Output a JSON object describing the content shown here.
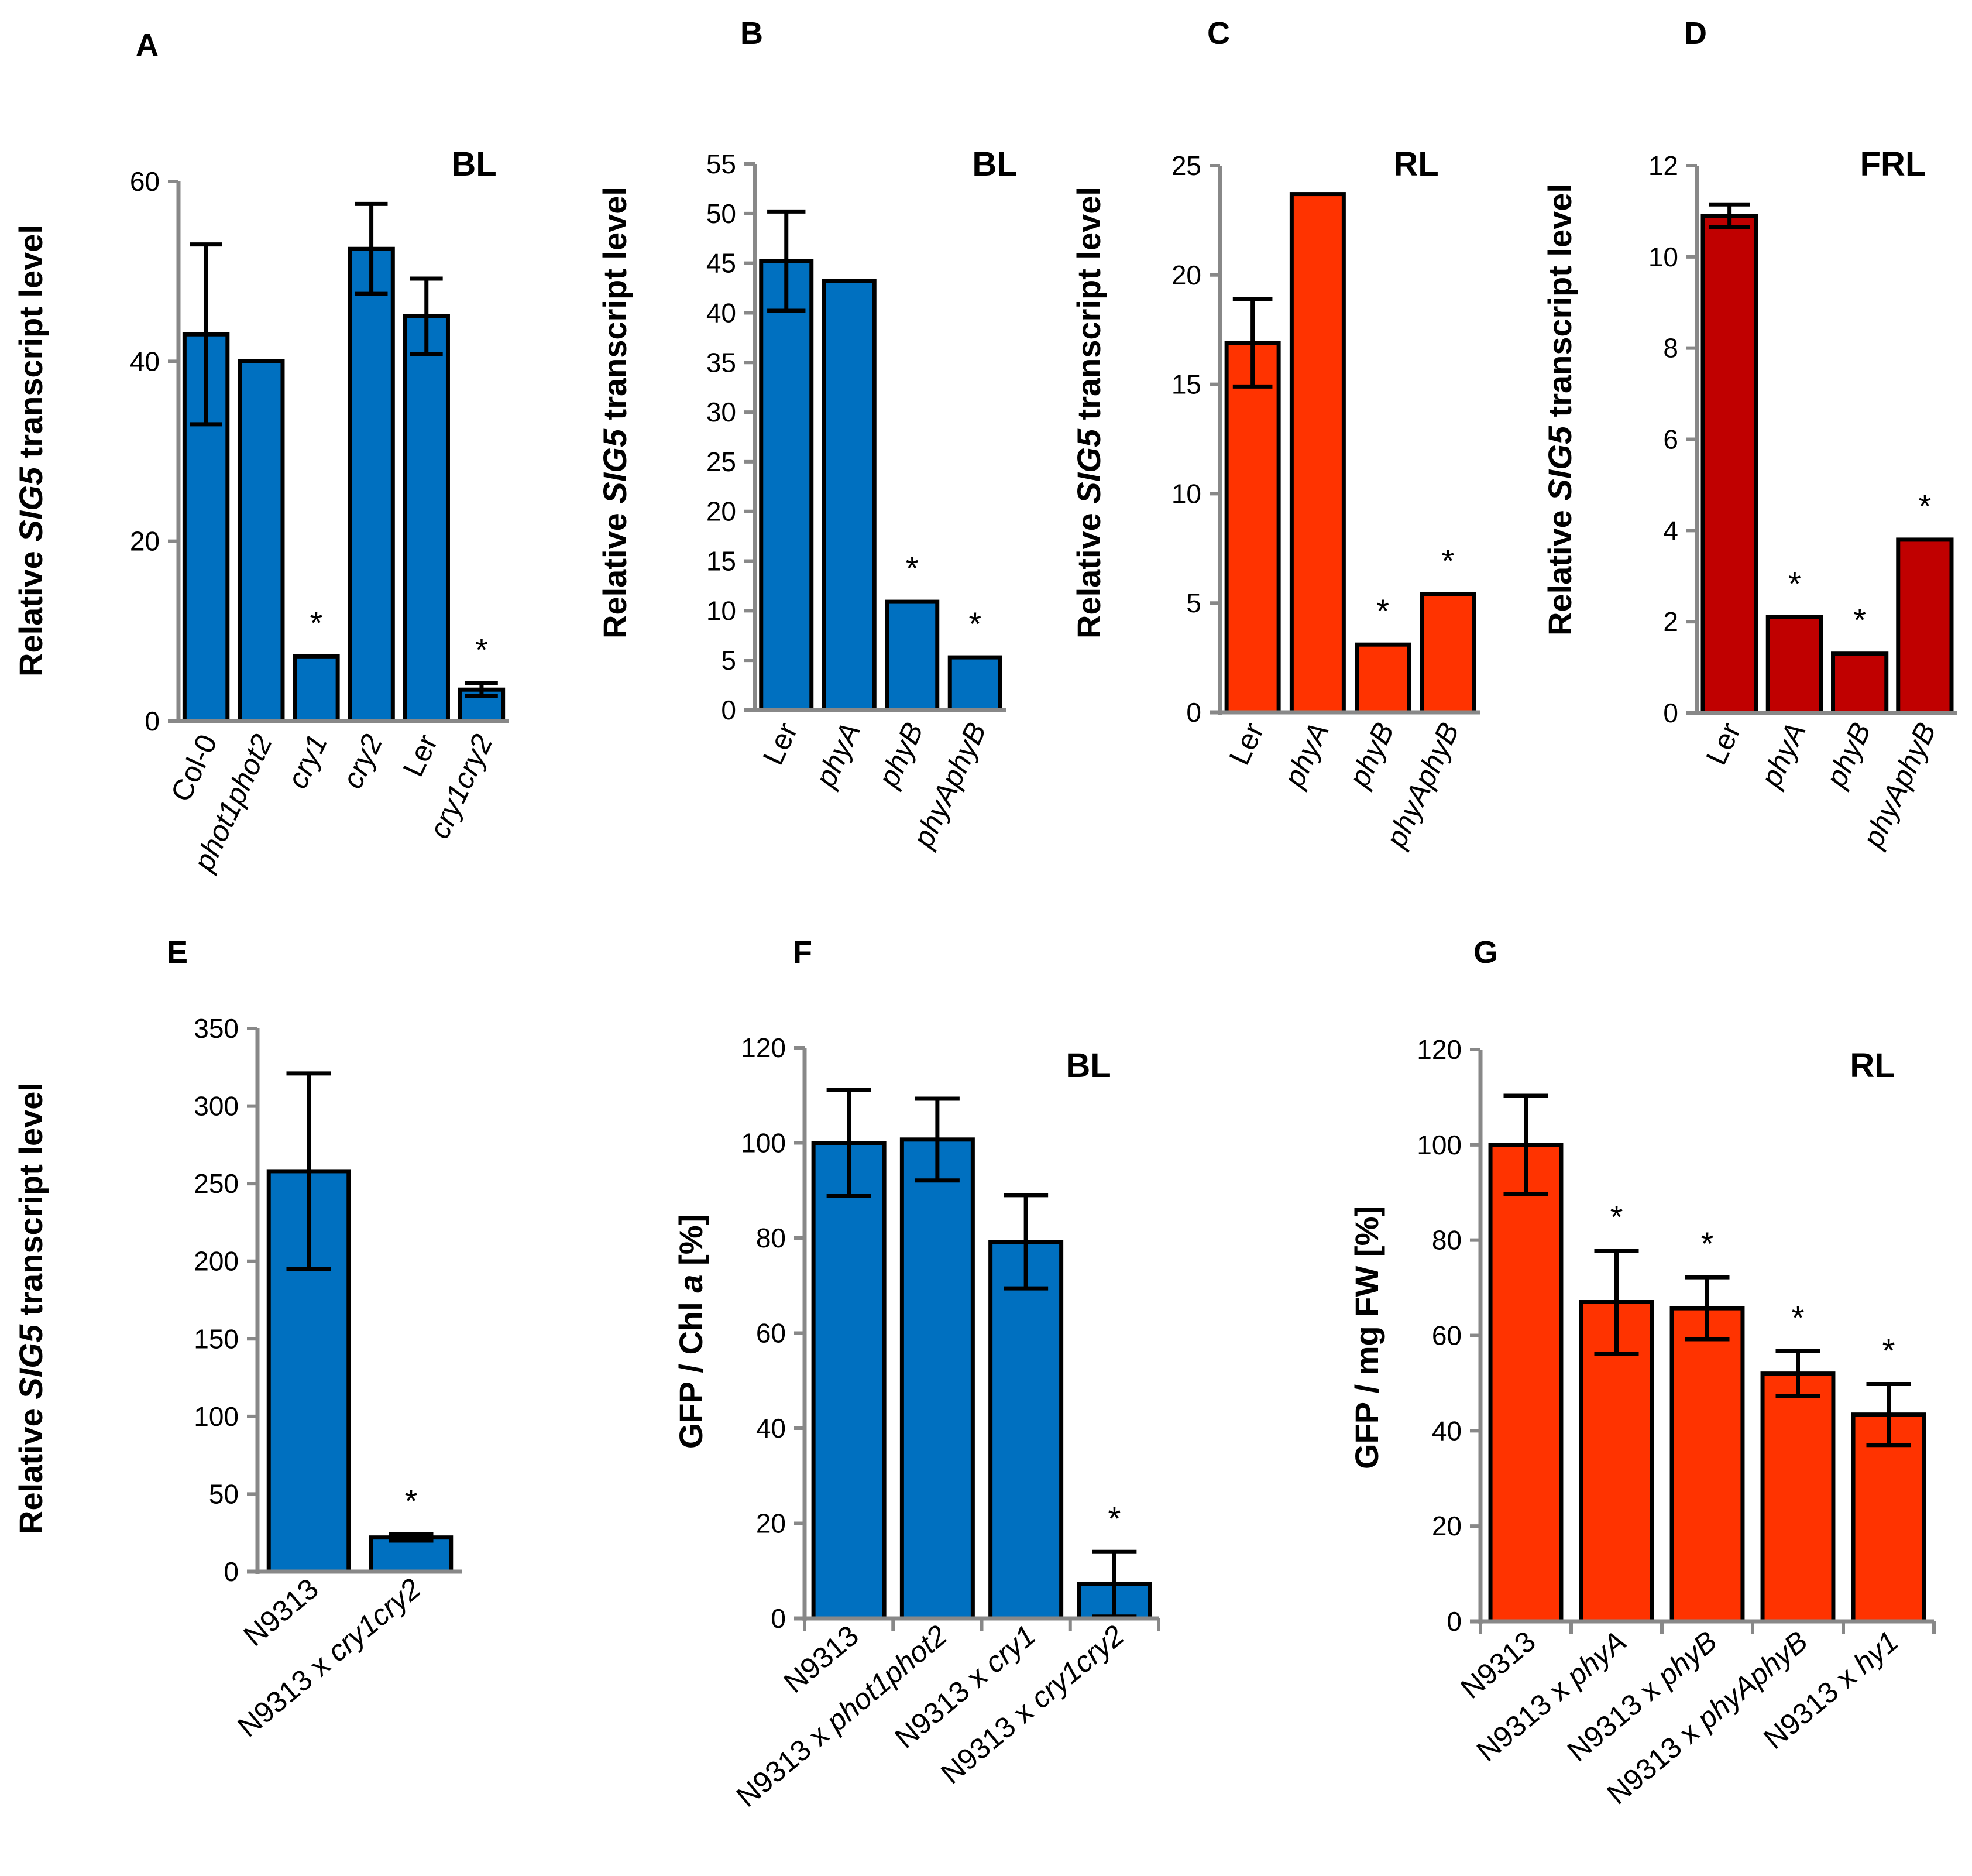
{
  "figure": {
    "colors": {
      "blue": "#0070C0",
      "orange_red": "#FF3300",
      "dark_red": "#C00000",
      "axis": "#888888",
      "outline": "#000000"
    }
  },
  "chart_data": [
    {
      "id": "A",
      "type": "bar",
      "panel_letter": "A",
      "condition": "BL",
      "ylabel_parts": [
        "Relative ",
        "SIG5",
        " transcript  level"
      ],
      "ylim": [
        0,
        60
      ],
      "yticks": [
        0,
        20,
        40,
        60
      ],
      "color": "blue",
      "italic_categories": [
        false,
        true,
        true,
        true,
        false,
        true
      ],
      "categories": [
        "Col-0",
        "phot1phot2",
        "cry1",
        "cry2",
        "Ler",
        "cry1cry2"
      ],
      "values": [
        43.0,
        40.0,
        7.2,
        52.5,
        45.0,
        3.5
      ],
      "errors": [
        10.0,
        null,
        null,
        5.0,
        4.2,
        0.7
      ],
      "significant": [
        false,
        false,
        true,
        false,
        false,
        true
      ],
      "tick_marks_between": false
    },
    {
      "id": "B",
      "type": "bar",
      "panel_letter": "B",
      "condition": "BL",
      "ylabel_parts": [
        "Relative ",
        "SIG5",
        " transcript level"
      ],
      "ylim": [
        0,
        55
      ],
      "yticks": [
        0,
        5,
        10,
        15,
        20,
        25,
        30,
        35,
        40,
        45,
        50,
        55
      ],
      "color": "blue",
      "italic_categories": [
        false,
        true,
        true,
        true
      ],
      "categories": [
        "Ler",
        "phyA",
        "phyB",
        "phyAphyB"
      ],
      "values": [
        45.2,
        43.2,
        10.9,
        5.3
      ],
      "errors": [
        5.0,
        null,
        null,
        null
      ],
      "significant": [
        false,
        false,
        true,
        true
      ],
      "tick_marks_between": false
    },
    {
      "id": "C",
      "type": "bar",
      "panel_letter": "C",
      "condition": "RL",
      "ylabel_parts": [
        "Relative ",
        "SIG5",
        " transcript level"
      ],
      "ylim": [
        0,
        25
      ],
      "yticks": [
        0,
        5,
        10,
        15,
        20,
        25
      ],
      "color": "orange_red",
      "italic_categories": [
        false,
        true,
        true,
        true
      ],
      "categories": [
        "Ler",
        "phyA",
        "phyB",
        "phyAphyB"
      ],
      "values": [
        16.9,
        23.7,
        3.1,
        5.4
      ],
      "errors": [
        2.0,
        null,
        null,
        null
      ],
      "significant": [
        false,
        false,
        true,
        true
      ],
      "tick_marks_between": false
    },
    {
      "id": "D",
      "type": "bar",
      "panel_letter": "D",
      "condition": "FRL",
      "ylabel_parts": [
        "Relative ",
        "SIG5",
        " transcript level"
      ],
      "ylim": [
        0,
        12
      ],
      "yticks": [
        0,
        2,
        4,
        6,
        8,
        10,
        12
      ],
      "color": "dark_red",
      "italic_categories": [
        false,
        true,
        true,
        true
      ],
      "categories": [
        "Ler",
        "phyA",
        "phyB",
        "phyAphyB"
      ],
      "values": [
        10.9,
        2.1,
        1.3,
        3.8
      ],
      "errors": [
        0.25,
        null,
        null,
        null
      ],
      "significant": [
        false,
        true,
        true,
        true
      ],
      "tick_marks_between": false
    },
    {
      "id": "E",
      "type": "bar",
      "panel_letter": "E",
      "condition": "",
      "ylabel_parts": [
        "Relative ",
        "SIG5",
        " transcript  level"
      ],
      "ylim": [
        0,
        350
      ],
      "yticks": [
        0,
        50,
        100,
        150,
        200,
        250,
        300,
        350
      ],
      "color": "blue",
      "italic_categories": [
        false,
        false
      ],
      "categories": [
        "N9313",
        "N9313 x cry1cry2"
      ],
      "categories_italic_suffix": [
        "",
        "cry1cry2"
      ],
      "values": [
        258,
        22
      ],
      "errors": [
        63,
        2
      ],
      "significant": [
        false,
        true
      ],
      "tick_marks_between": false
    },
    {
      "id": "F",
      "type": "bar",
      "panel_letter": "F",
      "condition": "BL",
      "ylabel_parts": [
        "GFP / Chl ",
        "a",
        " [%]"
      ],
      "ylim": [
        0,
        120
      ],
      "yticks": [
        0,
        20,
        40,
        60,
        80,
        100,
        120
      ],
      "color": "blue",
      "italic_categories": [
        false,
        false,
        false,
        false
      ],
      "categories": [
        "N9313",
        "N9313 x phot1phot2",
        "N9313 x cry1",
        "N9313 x cry1cry2"
      ],
      "categories_italic_suffix": [
        "",
        "phot1phot2",
        "cry1",
        "cry1cry2"
      ],
      "values": [
        100,
        100.7,
        79.2,
        7.2
      ],
      "errors": [
        11.2,
        8.6,
        9.8,
        6.8
      ],
      "significant": [
        false,
        false,
        false,
        true
      ],
      "tick_marks_between": true
    },
    {
      "id": "G",
      "type": "bar",
      "panel_letter": "G",
      "condition": "RL",
      "ylabel_parts": [
        "GFP / mg FW [%]",
        "",
        ""
      ],
      "ylim": [
        0,
        120
      ],
      "yticks": [
        0,
        20,
        40,
        60,
        80,
        100,
        120
      ],
      "color": "orange_red",
      "italic_categories": [
        false,
        false,
        false,
        false,
        false
      ],
      "categories": [
        "N9313",
        "N9313 x phyA",
        "N9313 x phyB",
        "N9313 x phyAphyB",
        "N9313 x hy1"
      ],
      "categories_italic_suffix": [
        "",
        "phyA",
        "phyB",
        "phyAphyB",
        "hy1"
      ],
      "values": [
        100,
        67,
        65.7,
        52,
        43.4
      ],
      "errors": [
        10.3,
        10.8,
        6.5,
        4.7,
        6.4
      ],
      "significant": [
        false,
        true,
        true,
        true,
        true
      ],
      "tick_marks_between": true
    }
  ]
}
